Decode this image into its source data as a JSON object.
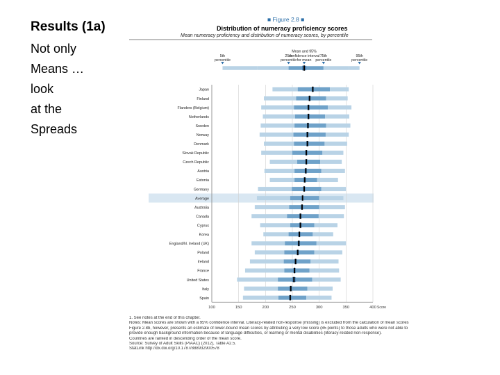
{
  "slide": {
    "title": "Results (1a)",
    "lines": [
      "Not only",
      "Means …",
      "look",
      "at the",
      "Spreads"
    ]
  },
  "figure": {
    "label": "■ Figure 2.8 ■",
    "title": "Distribution of numeracy proficiency scores",
    "subtitle": "Mean numeracy proficiency and distribution of numeracy scores, by percentile",
    "legend": {
      "p5": "5th percentile",
      "p25": "25th percentile",
      "mean": "Mean and 95% confidence interval for mean",
      "p75": "75th percentile",
      "p95": "95th percentile"
    },
    "colors": {
      "outer": "#b9d3e6",
      "inner": "#6fa2c9",
      "ci": "#4a7fb0",
      "mean": "#000000",
      "highlight": "#d9e7f2"
    },
    "notes": [
      "1. See notes at the end of this chapter.",
      "Notes: Mean scores are shown with a 95% confidence interval. Literacy-related non-response (missing) is excluded from the calculation of mean scores",
      "Figure 2.8b, however, presents an estimate of lower-bound mean scores by attributing a very low score (85 points) to those adults who were not able to",
      "provide enough background information because of language difficulties, or learning or mental disabilities (literacy-related non-response).",
      "Countries are ranked in descending order of the mean score.",
      "Source: Survey of Adult Skills (PIAAC) (2012), Table A2.5.",
      "StatLink http://dx.doi.org/10.1787/888932900578"
    ]
  },
  "chart_data": {
    "type": "bar",
    "orientation": "horizontal",
    "xlim": [
      100,
      400
    ],
    "x_ticks": [
      100,
      150,
      200,
      250,
      300,
      350,
      400
    ],
    "x_unit": "Score",
    "highlight_category": "Average",
    "categories": [
      "Japan",
      "Finland",
      "Flanders (Belgium)",
      "Netherlands",
      "Sweden",
      "Norway",
      "Denmark",
      "Slovak Republic",
      "Czech Republic",
      "Austria",
      "Estonia",
      "Germany",
      "Average",
      "Australia",
      "Canada",
      "Cyprus",
      "Korea",
      "England/N. Ireland (UK)",
      "Poland",
      "Ireland",
      "France",
      "United States",
      "Italy",
      "Spain"
    ],
    "p5": [
      213,
      197,
      192,
      195,
      191,
      189,
      197,
      192,
      208,
      198,
      208,
      186,
      184,
      180,
      174,
      190,
      196,
      174,
      180,
      171,
      162,
      147,
      160,
      158
    ],
    "p25": [
      260,
      257,
      253,
      255,
      254,
      252,
      253,
      250,
      259,
      254,
      254,
      249,
      246,
      244,
      240,
      246,
      243,
      236,
      235,
      234,
      235,
      223,
      223,
      224
    ],
    "mean": [
      288,
      282,
      280,
      280,
      279,
      278,
      278,
      276,
      276,
      275,
      273,
      272,
      269,
      268,
      265,
      265,
      263,
      262,
      260,
      256,
      254,
      253,
      247,
      246
    ],
    "ci_low": [
      286,
      280,
      278,
      278,
      277,
      276,
      276,
      274,
      274,
      273,
      271,
      270,
      268,
      266,
      263,
      263,
      261,
      260,
      258,
      254,
      252,
      250,
      245,
      244
    ],
    "ci_high": [
      290,
      284,
      282,
      282,
      281,
      280,
      280,
      278,
      278,
      277,
      275,
      274,
      270,
      270,
      267,
      267,
      265,
      264,
      262,
      258,
      256,
      256,
      249,
      248
    ],
    "p75": [
      320,
      313,
      316,
      311,
      313,
      312,
      310,
      306,
      302,
      304,
      296,
      304,
      300,
      300,
      299,
      291,
      288,
      295,
      291,
      284,
      282,
      287,
      278,
      276
    ],
    "p95": [
      355,
      353,
      360,
      356,
      358,
      355,
      352,
      345,
      342,
      348,
      335,
      350,
      345,
      348,
      346,
      334,
      326,
      350,
      343,
      336,
      337,
      340,
      325,
      323
    ]
  }
}
